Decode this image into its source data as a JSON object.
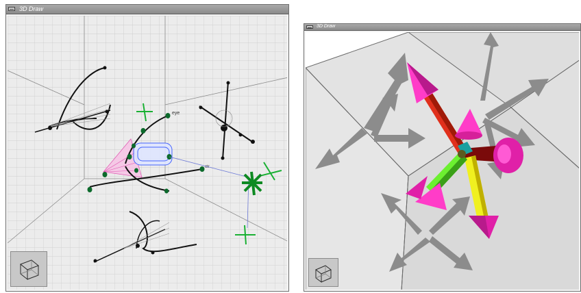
{
  "left_window": {
    "title": "3D Draw"
  },
  "right_window": {
    "title": "3D Draw"
  },
  "scene_labels": [
    "eye",
    "ctr"
  ]
}
